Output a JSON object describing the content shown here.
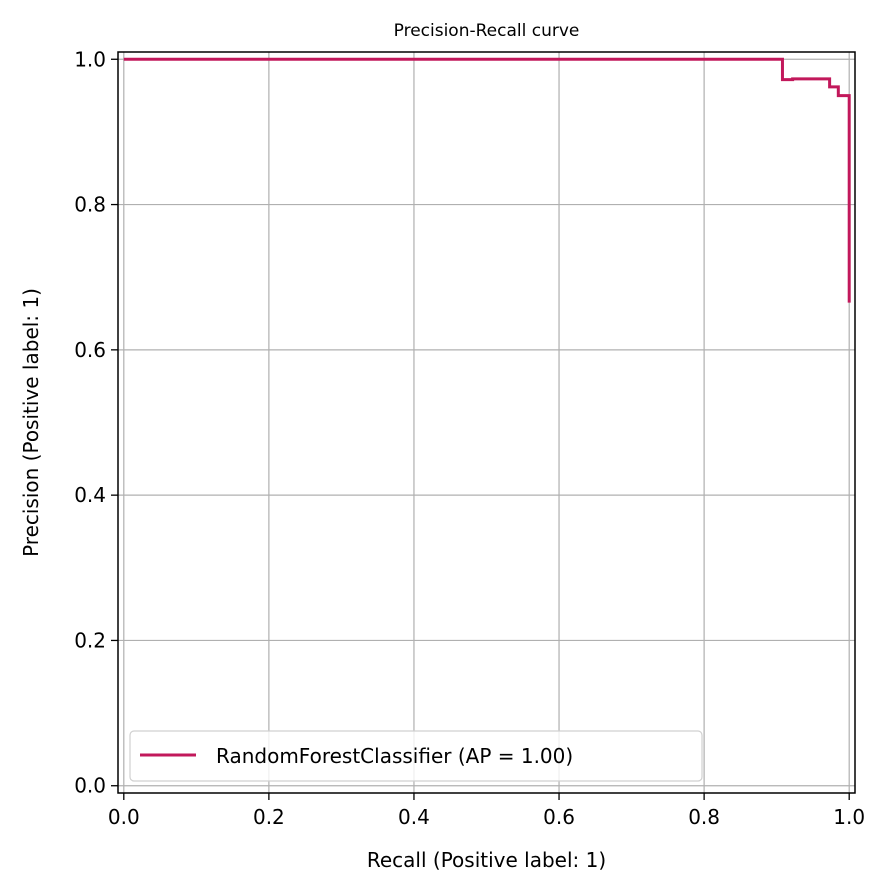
{
  "chart_data": {
    "type": "line",
    "title": "Precision-Recall curve",
    "xlabel": "Recall (Positive label: 1)",
    "ylabel": "Precision (Positive label: 1)",
    "xlim": [
      -0.008,
      1.008
    ],
    "ylim": [
      -0.01,
      1.01
    ],
    "xticks": [
      0.0,
      0.2,
      0.4,
      0.6,
      0.8,
      1.0
    ],
    "xtick_labels": [
      "0.0",
      "0.2",
      "0.4",
      "0.6",
      "0.8",
      "1.0"
    ],
    "yticks": [
      0.0,
      0.2,
      0.4,
      0.6,
      0.8,
      1.0
    ],
    "ytick_labels": [
      "0.0",
      "0.2",
      "0.4",
      "0.6",
      "0.8",
      "1.0"
    ],
    "grid": true,
    "legend_position": "lower-left",
    "series": [
      {
        "name": "RandomForestClassifier (AP = 1.00)",
        "color": "#c2185b",
        "drawstyle": "steps",
        "x": [
          0.0,
          0.908,
          0.908,
          0.922,
          0.922,
          0.973,
          0.973,
          0.985,
          0.985,
          1.0,
          1.0
        ],
        "y": [
          1.0,
          1.0,
          0.972,
          0.972,
          0.973,
          0.973,
          0.962,
          0.962,
          0.95,
          0.95,
          0.665
        ]
      }
    ]
  }
}
